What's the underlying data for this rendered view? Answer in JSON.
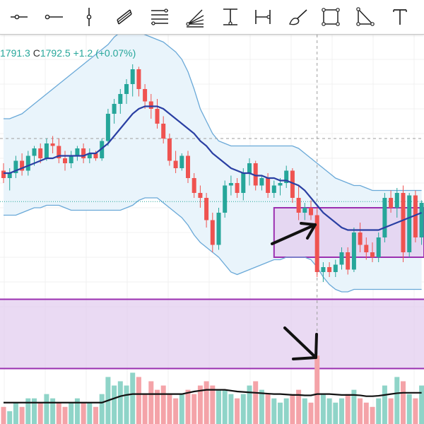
{
  "toolbar": {
    "tools": [
      {
        "name": "horizontal-ray-tool",
        "icon": "horizontal-ray-icon"
      },
      {
        "name": "ray-tool",
        "icon": "ray-icon"
      },
      {
        "name": "vertical-line-tool",
        "icon": "vertical-line-icon"
      },
      {
        "name": "parallel-channel-tool",
        "icon": "parallel-channel-icon"
      },
      {
        "name": "fib-retracement-tool",
        "icon": "fib-retracement-icon"
      },
      {
        "name": "fib-fan-tool",
        "icon": "fib-fan-icon"
      },
      {
        "name": "price-range-tool",
        "icon": "price-range-icon"
      },
      {
        "name": "date-range-tool",
        "icon": "date-range-icon"
      },
      {
        "name": "brush-tool",
        "icon": "brush-icon"
      },
      {
        "name": "rectangle-tool",
        "icon": "rectangle-icon"
      },
      {
        "name": "triangle-tool",
        "icon": "triangle-icon"
      },
      {
        "name": "text-tool",
        "icon": "text-icon"
      }
    ]
  },
  "ohlc_legend": {
    "low_value": "1791.3",
    "close_label": "C",
    "close_value": "1792.5",
    "change": "+1.2 (+0.07%)"
  },
  "colors": {
    "bull": "#26a69a",
    "bear": "#ef5350",
    "bull_volume": "#8fd4c8",
    "bear_volume": "#f4a3a8",
    "sma": "#2a3fa3",
    "bollinger_band": "#6aa9d8",
    "bollinger_fill": "#e9f4fb",
    "zone_fill": "#e3cdef",
    "zone_border": "#9b30b0",
    "volume_ma": "#111111",
    "arrow": "#111111",
    "crosshair": "#9e9e9e"
  },
  "chart_data": {
    "type": "candlestick",
    "candles": [
      {
        "o": 1805,
        "h": 1808,
        "l": 1800,
        "c": 1802
      },
      {
        "o": 1802,
        "h": 1806,
        "l": 1797,
        "c": 1804
      },
      {
        "o": 1804,
        "h": 1811,
        "l": 1802,
        "c": 1809
      },
      {
        "o": 1809,
        "h": 1812,
        "l": 1803,
        "c": 1805
      },
      {
        "o": 1805,
        "h": 1813,
        "l": 1803,
        "c": 1811
      },
      {
        "o": 1811,
        "h": 1815,
        "l": 1807,
        "c": 1814
      },
      {
        "o": 1814,
        "h": 1816,
        "l": 1808,
        "c": 1810
      },
      {
        "o": 1810,
        "h": 1818,
        "l": 1809,
        "c": 1816
      },
      {
        "o": 1816,
        "h": 1819,
        "l": 1812,
        "c": 1815
      },
      {
        "o": 1815,
        "h": 1818,
        "l": 1808,
        "c": 1810
      },
      {
        "o": 1810,
        "h": 1813,
        "l": 1805,
        "c": 1808
      },
      {
        "o": 1808,
        "h": 1813,
        "l": 1806,
        "c": 1811
      },
      {
        "o": 1811,
        "h": 1815,
        "l": 1809,
        "c": 1814
      },
      {
        "o": 1814,
        "h": 1816,
        "l": 1808,
        "c": 1810
      },
      {
        "o": 1810,
        "h": 1814,
        "l": 1808,
        "c": 1812
      },
      {
        "o": 1812,
        "h": 1813,
        "l": 1809,
        "c": 1810
      },
      {
        "o": 1810,
        "h": 1818,
        "l": 1809,
        "c": 1817
      },
      {
        "o": 1817,
        "h": 1830,
        "l": 1815,
        "c": 1828
      },
      {
        "o": 1828,
        "h": 1834,
        "l": 1824,
        "c": 1832
      },
      {
        "o": 1832,
        "h": 1838,
        "l": 1828,
        "c": 1836
      },
      {
        "o": 1836,
        "h": 1842,
        "l": 1832,
        "c": 1840
      },
      {
        "o": 1840,
        "h": 1848,
        "l": 1835,
        "c": 1846
      },
      {
        "o": 1846,
        "h": 1847,
        "l": 1835,
        "c": 1838
      },
      {
        "o": 1838,
        "h": 1840,
        "l": 1830,
        "c": 1833
      },
      {
        "o": 1833,
        "h": 1836,
        "l": 1826,
        "c": 1830
      },
      {
        "o": 1830,
        "h": 1834,
        "l": 1822,
        "c": 1824
      },
      {
        "o": 1824,
        "h": 1827,
        "l": 1816,
        "c": 1818
      },
      {
        "o": 1818,
        "h": 1820,
        "l": 1807,
        "c": 1809
      },
      {
        "o": 1809,
        "h": 1813,
        "l": 1804,
        "c": 1806
      },
      {
        "o": 1806,
        "h": 1812,
        "l": 1805,
        "c": 1811
      },
      {
        "o": 1811,
        "h": 1813,
        "l": 1800,
        "c": 1802
      },
      {
        "o": 1802,
        "h": 1804,
        "l": 1794,
        "c": 1796
      },
      {
        "o": 1796,
        "h": 1799,
        "l": 1790,
        "c": 1794
      },
      {
        "o": 1794,
        "h": 1796,
        "l": 1782,
        "c": 1785
      },
      {
        "o": 1785,
        "h": 1788,
        "l": 1772,
        "c": 1775
      },
      {
        "o": 1775,
        "h": 1790,
        "l": 1773,
        "c": 1788
      },
      {
        "o": 1788,
        "h": 1801,
        "l": 1786,
        "c": 1799
      },
      {
        "o": 1799,
        "h": 1803,
        "l": 1795,
        "c": 1800
      },
      {
        "o": 1800,
        "h": 1802,
        "l": 1794,
        "c": 1796
      },
      {
        "o": 1796,
        "h": 1806,
        "l": 1793,
        "c": 1804
      },
      {
        "o": 1804,
        "h": 1810,
        "l": 1799,
        "c": 1808
      },
      {
        "o": 1808,
        "h": 1809,
        "l": 1797,
        "c": 1799
      },
      {
        "o": 1799,
        "h": 1803,
        "l": 1797,
        "c": 1802
      },
      {
        "o": 1802,
        "h": 1804,
        "l": 1794,
        "c": 1796
      },
      {
        "o": 1796,
        "h": 1801,
        "l": 1794,
        "c": 1799
      },
      {
        "o": 1799,
        "h": 1802,
        "l": 1795,
        "c": 1800
      },
      {
        "o": 1800,
        "h": 1807,
        "l": 1798,
        "c": 1805
      },
      {
        "o": 1805,
        "h": 1806,
        "l": 1792,
        "c": 1794
      },
      {
        "o": 1794,
        "h": 1799,
        "l": 1785,
        "c": 1788
      },
      {
        "o": 1788,
        "h": 1792,
        "l": 1785,
        "c": 1790
      },
      {
        "o": 1790,
        "h": 1793,
        "l": 1785,
        "c": 1787
      },
      {
        "o": 1787,
        "h": 1790,
        "l": 1762,
        "c": 1764
      },
      {
        "o": 1764,
        "h": 1768,
        "l": 1760,
        "c": 1766
      },
      {
        "o": 1766,
        "h": 1768,
        "l": 1762,
        "c": 1764
      },
      {
        "o": 1764,
        "h": 1769,
        "l": 1762,
        "c": 1767
      },
      {
        "o": 1767,
        "h": 1774,
        "l": 1765,
        "c": 1772
      },
      {
        "o": 1772,
        "h": 1774,
        "l": 1763,
        "c": 1765
      },
      {
        "o": 1765,
        "h": 1782,
        "l": 1764,
        "c": 1780
      },
      {
        "o": 1780,
        "h": 1784,
        "l": 1772,
        "c": 1775
      },
      {
        "o": 1775,
        "h": 1778,
        "l": 1769,
        "c": 1772
      },
      {
        "o": 1772,
        "h": 1776,
        "l": 1768,
        "c": 1770
      },
      {
        "o": 1770,
        "h": 1780,
        "l": 1768,
        "c": 1778
      },
      {
        "o": 1778,
        "h": 1796,
        "l": 1776,
        "c": 1794
      },
      {
        "o": 1794,
        "h": 1797,
        "l": 1788,
        "c": 1790
      },
      {
        "o": 1790,
        "h": 1798,
        "l": 1786,
        "c": 1796
      },
      {
        "o": 1796,
        "h": 1799,
        "l": 1768,
        "c": 1772
      },
      {
        "o": 1772,
        "h": 1796,
        "l": 1770,
        "c": 1795
      },
      {
        "o": 1795,
        "h": 1797,
        "l": 1776,
        "c": 1778
      },
      {
        "o": 1778,
        "h": 1793,
        "l": 1775,
        "c": 1792
      }
    ],
    "sma": [
      1804,
      1804,
      1805,
      1806,
      1807,
      1808,
      1809,
      1810,
      1810,
      1811,
      1811,
      1811,
      1811,
      1811,
      1812,
      1812,
      1814,
      1816,
      1819,
      1822,
      1825,
      1828,
      1830,
      1831,
      1831,
      1831,
      1830,
      1828,
      1826,
      1824,
      1822,
      1820,
      1817,
      1815,
      1812,
      1810,
      1808,
      1806,
      1805,
      1804,
      1804,
      1803,
      1803,
      1802,
      1802,
      1801,
      1801,
      1800,
      1799,
      1797,
      1794,
      1791,
      1788,
      1786,
      1784,
      1782,
      1781,
      1781,
      1781,
      1781,
      1781,
      1781,
      1782,
      1783,
      1784,
      1785,
      1786,
      1787,
      1788
    ],
    "bb_upper": [
      1826,
      1826,
      1827,
      1828,
      1830,
      1832,
      1834,
      1836,
      1838,
      1840,
      1842,
      1844,
      1846,
      1848,
      1850,
      1852,
      1854,
      1856,
      1859,
      1861,
      1862,
      1862,
      1861,
      1860,
      1859,
      1858,
      1857,
      1855,
      1853,
      1850,
      1845,
      1838,
      1830,
      1825,
      1820,
      1817,
      1816,
      1815,
      1815,
      1815,
      1815,
      1815,
      1815,
      1815,
      1815,
      1815,
      1815,
      1815,
      1814,
      1812,
      1810,
      1808,
      1806,
      1804,
      1802,
      1801,
      1800,
      1799,
      1799,
      1798,
      1797,
      1797,
      1797,
      1797,
      1797,
      1797,
      1797,
      1797,
      1797
    ],
    "bb_lower": [
      1787,
      1787,
      1787,
      1788,
      1789,
      1790,
      1790,
      1791,
      1791,
      1791,
      1790,
      1789,
      1789,
      1789,
      1789,
      1789,
      1789,
      1789,
      1789,
      1789,
      1790,
      1791,
      1793,
      1794,
      1794,
      1794,
      1792,
      1790,
      1788,
      1786,
      1783,
      1779,
      1776,
      1774,
      1772,
      1770,
      1767,
      1764,
      1763,
      1764,
      1765,
      1766,
      1767,
      1768,
      1769,
      1769,
      1770,
      1770,
      1770,
      1770,
      1769,
      1766,
      1762,
      1759,
      1757,
      1756,
      1756,
      1757,
      1757,
      1757,
      1757,
      1757,
      1757,
      1757,
      1757,
      1757,
      1757,
      1757,
      1757
    ],
    "volume": [
      {
        "v": 4,
        "up": false
      },
      {
        "v": 3,
        "up": true
      },
      {
        "v": 5,
        "up": true
      },
      {
        "v": 4,
        "up": false
      },
      {
        "v": 6,
        "up": true
      },
      {
        "v": 6,
        "up": true
      },
      {
        "v": 5,
        "up": false
      },
      {
        "v": 7,
        "up": true
      },
      {
        "v": 6,
        "up": true
      },
      {
        "v": 5,
        "up": false
      },
      {
        "v": 4,
        "up": false
      },
      {
        "v": 5,
        "up": true
      },
      {
        "v": 6,
        "up": true
      },
      {
        "v": 5,
        "up": false
      },
      {
        "v": 5,
        "up": true
      },
      {
        "v": 4,
        "up": false
      },
      {
        "v": 7,
        "up": true
      },
      {
        "v": 11,
        "up": true
      },
      {
        "v": 9,
        "up": true
      },
      {
        "v": 10,
        "up": true
      },
      {
        "v": 9,
        "up": true
      },
      {
        "v": 12,
        "up": true
      },
      {
        "v": 11,
        "up": false
      },
      {
        "v": 7,
        "up": false
      },
      {
        "v": 10,
        "up": false
      },
      {
        "v": 8,
        "up": false
      },
      {
        "v": 9,
        "up": false
      },
      {
        "v": 7,
        "up": false
      },
      {
        "v": 6,
        "up": false
      },
      {
        "v": 7,
        "up": true
      },
      {
        "v": 8,
        "up": false
      },
      {
        "v": 7,
        "up": false
      },
      {
        "v": 9,
        "up": false
      },
      {
        "v": 10,
        "up": false
      },
      {
        "v": 9,
        "up": false
      },
      {
        "v": 8,
        "up": true
      },
      {
        "v": 8,
        "up": true
      },
      {
        "v": 7,
        "up": true
      },
      {
        "v": 6,
        "up": false
      },
      {
        "v": 7,
        "up": true
      },
      {
        "v": 9,
        "up": true
      },
      {
        "v": 10,
        "up": false
      },
      {
        "v": 8,
        "up": true
      },
      {
        "v": 7,
        "up": false
      },
      {
        "v": 6,
        "up": true
      },
      {
        "v": 5,
        "up": true
      },
      {
        "v": 6,
        "up": true
      },
      {
        "v": 7,
        "up": false
      },
      {
        "v": 8,
        "up": false
      },
      {
        "v": 6,
        "up": true
      },
      {
        "v": 5,
        "up": false
      },
      {
        "v": 16,
        "up": false
      },
      {
        "v": 7,
        "up": true
      },
      {
        "v": 6,
        "up": true
      },
      {
        "v": 5,
        "up": true
      },
      {
        "v": 6,
        "up": true
      },
      {
        "v": 7,
        "up": false
      },
      {
        "v": 8,
        "up": true
      },
      {
        "v": 6,
        "up": false
      },
      {
        "v": 5,
        "up": false
      },
      {
        "v": 4,
        "up": false
      },
      {
        "v": 6,
        "up": true
      },
      {
        "v": 9,
        "up": true
      },
      {
        "v": 6,
        "up": false
      },
      {
        "v": 11,
        "up": true
      },
      {
        "v": 10,
        "up": false
      },
      {
        "v": 7,
        "up": true
      },
      {
        "v": 6,
        "up": false
      },
      {
        "v": 9,
        "up": true
      }
    ],
    "volume_ma": [
      5,
      5,
      5,
      5,
      5,
      5,
      5,
      5,
      5,
      5,
      5,
      5,
      5,
      5,
      5,
      5,
      5,
      5.5,
      6,
      6.5,
      6.8,
      7,
      7,
      7,
      7,
      7,
      7,
      7,
      7,
      7,
      7.3,
      7.6,
      7.8,
      8,
      8,
      8,
      8,
      7.8,
      7.6,
      7.5,
      7.4,
      7.3,
      7.2,
      7.1,
      7,
      7,
      6.9,
      6.8,
      6.8,
      6.7,
      6.7,
      7,
      7,
      7,
      6.9,
      6.8,
      6.8,
      6.8,
      6.7,
      6.5,
      6.5,
      6.6,
      6.8,
      7,
      7.2,
      7.3,
      7.3,
      7.3,
      7.3
    ],
    "price_range": [
      1740,
      1860
    ],
    "volume_range": [
      0,
      20
    ],
    "annotations": {
      "zone_upper": [
        1770,
        1790
      ],
      "zone_lower": [
        1725,
        1753
      ],
      "crosshair_price": 1818,
      "dotted_line_price": 1792.5,
      "crosshair_index": 51
    }
  }
}
